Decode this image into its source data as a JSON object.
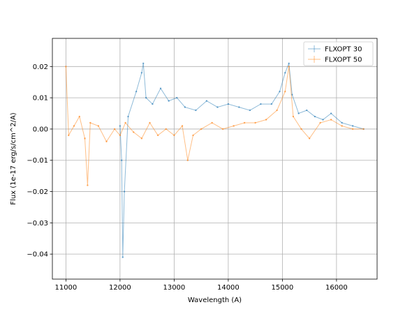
{
  "chart_data": {
    "type": "line",
    "title": "",
    "xlabel": "Wavelength (A)",
    "ylabel": "Flux (1e-17 erg/s/cm^2/A)",
    "xlim": [
      10750,
      16750
    ],
    "ylim": [
      -0.048,
      0.029
    ],
    "xticks": [
      11000,
      12000,
      13000,
      14000,
      15000,
      16000
    ],
    "yticks": [
      -0.04,
      -0.03,
      -0.02,
      -0.01,
      0.0,
      0.01,
      0.02
    ],
    "ytick_labels": [
      "−0.04",
      "−0.03",
      "−0.02",
      "−0.01",
      "0.00",
      "0.01",
      "0.02"
    ],
    "grid": true,
    "legend_position": "top-right",
    "series": [
      {
        "name": "FLXOPT 30",
        "color": "#1f77b4",
        "x": [
          12000,
          12030,
          12050,
          12080,
          12150,
          12300,
          12400,
          12430,
          12480,
          12600,
          12750,
          12900,
          13050,
          13200,
          13400,
          13600,
          13800,
          14000,
          14200,
          14400,
          14600,
          14800,
          14950,
          15050,
          15120,
          15180,
          15300,
          15450,
          15600,
          15750,
          15900,
          16100,
          16300,
          16500
        ],
        "y": [
          0.001,
          -0.01,
          -0.041,
          -0.02,
          0.004,
          0.012,
          0.018,
          0.021,
          0.01,
          0.008,
          0.013,
          0.009,
          0.01,
          0.007,
          0.006,
          0.009,
          0.007,
          0.008,
          0.007,
          0.006,
          0.008,
          0.008,
          0.012,
          0.018,
          0.021,
          0.011,
          0.005,
          0.006,
          0.004,
          0.003,
          0.005,
          0.002,
          0.001,
          0.0
        ]
      },
      {
        "name": "FLXOPT 50",
        "color": "#ff7f0e",
        "x": [
          11000,
          11050,
          11150,
          11250,
          11350,
          11400,
          11450,
          11600,
          11750,
          11900,
          12000,
          12100,
          12250,
          12400,
          12550,
          12700,
          12850,
          13000,
          13150,
          13250,
          13350,
          13500,
          13700,
          13900,
          14100,
          14300,
          14500,
          14700,
          14900,
          15050,
          15120,
          15200,
          15350,
          15500,
          15700,
          15900,
          16100,
          16300,
          16500
        ],
        "y": [
          0.02,
          -0.002,
          0.001,
          0.004,
          -0.003,
          -0.018,
          0.002,
          0.001,
          -0.004,
          0.0,
          -0.002,
          0.002,
          -0.001,
          -0.003,
          0.002,
          -0.002,
          0.0,
          -0.002,
          0.001,
          -0.01,
          -0.002,
          0.0,
          0.002,
          0.0,
          0.001,
          0.002,
          0.002,
          0.003,
          0.006,
          0.012,
          0.02,
          0.004,
          0.0,
          -0.003,
          0.002,
          0.003,
          0.001,
          0.0,
          0.0
        ]
      }
    ]
  }
}
